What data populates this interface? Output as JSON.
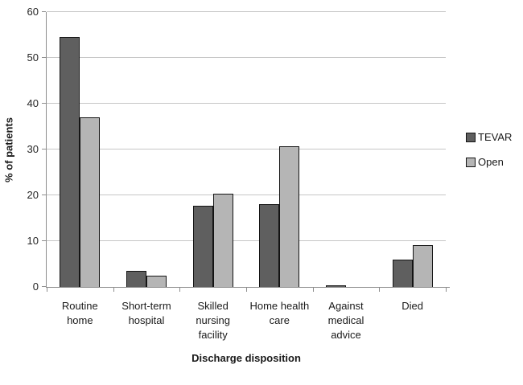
{
  "chart_data": {
    "type": "bar",
    "title": "",
    "xlabel": "Discharge disposition",
    "ylabel": "% of patients",
    "ylim": [
      0,
      60
    ],
    "yticks": [
      0,
      10,
      20,
      30,
      40,
      50,
      60
    ],
    "grid": true,
    "legend_position": "right",
    "categories": [
      "Routine home",
      "Short-term hospital",
      "Skilled nursing facility",
      "Home health care",
      "Against medical advice",
      "Died"
    ],
    "category_labels_wrapped": [
      "Routine\nhome",
      "Short-term\nhospital",
      "Skilled\nnursing\nfacility",
      "Home health\ncare",
      "Against\nmedical\nadvice",
      "Died"
    ],
    "series": [
      {
        "name": "TEVAR",
        "color": "#5f5f5f",
        "values": [
          54.5,
          3.5,
          17.7,
          18.0,
          0.3,
          6.0
        ]
      },
      {
        "name": "Open",
        "color": "#b5b5b5",
        "values": [
          37.0,
          2.4,
          20.4,
          30.7,
          0.0,
          9.1
        ]
      }
    ],
    "colors": {
      "bar_border": "#141414",
      "gridline": "#c6c6c6",
      "axis_line": "#8e8e8e",
      "text": "#1a1a1a"
    }
  }
}
